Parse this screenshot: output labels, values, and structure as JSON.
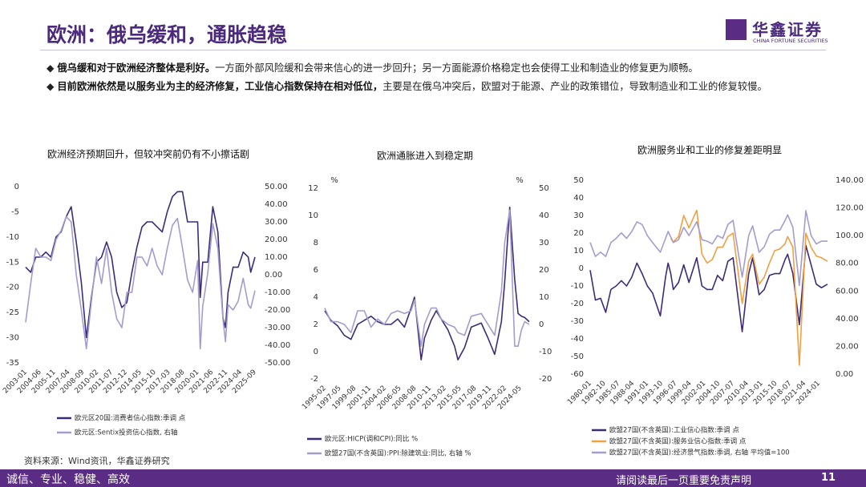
{
  "header": {
    "title": "欧洲：俄乌缓和，通胀趋稳",
    "logo": "华鑫证券",
    "logo_en": "CHINA FORTUNE SECURITIES"
  },
  "bullets": [
    {
      "bold": "俄乌缓和对于欧洲经济整体是利好。",
      "text": "一方面外部风险缓和会带来信心的进一步回升；另一方面能源价格稳定也会使得工业和制造业的修复更为顺畅。"
    },
    {
      "bold": "目前欧洲依然是以服务业为主的经济修复，工业信心指数保持在相对低位，",
      "text": "主要是在俄乌冲突后，欧盟对于能源、产业的政策错位，导致制造业和工业的修复较慢。"
    }
  ],
  "source": "资料来源：Wind资讯，华鑫证券研究",
  "footer": {
    "motto": "诚信、专业、稳健、高效",
    "disclaimer": "请阅读最后一页重要免责声明",
    "page": 11
  },
  "chart_data": [
    {
      "type": "line",
      "title": "欧洲经济预期回升，但较冲突前仍有不小擦话剧",
      "x": [
        "2003-01",
        "2003-07",
        "2004-01",
        "2004-07",
        "2005-01",
        "2005-07",
        "2006-01",
        "2006-07",
        "2007-01",
        "2007-07",
        "2008-01",
        "2008-07",
        "2009-01",
        "2009-07",
        "2010-01",
        "2010-07",
        "2011-01",
        "2011-07",
        "2012-01",
        "2012-07",
        "2013-01",
        "2013-07",
        "2014-01",
        "2014-07",
        "2015-01",
        "2015-07",
        "2016-01",
        "2016-07",
        "2017-01",
        "2017-07",
        "2018-01",
        "2018-07",
        "2019-01",
        "2019-07",
        "2020-01",
        "2020-04",
        "2020-07",
        "2021-01",
        "2021-07",
        "2022-01",
        "2022-07",
        "2022-10",
        "2023-01",
        "2023-07",
        "2024-01",
        "2024-07",
        "2025-01",
        "2025-04",
        "2025-09"
      ],
      "xticks": [
        "2003-01",
        "2004-06",
        "2005-11",
        "2007-04",
        "2008-09",
        "2010-02",
        "2011-07",
        "2012-12",
        "2014-05",
        "2015-10",
        "2017-03",
        "2018-08",
        "2020-01",
        "2021-06",
        "2022-11",
        "2024-04",
        "2025-09"
      ],
      "ylim": [
        -35,
        0
      ],
      "yticks": [
        0,
        -5,
        -10,
        -15,
        -20,
        -25,
        -30,
        -35
      ],
      "y2lim": [
        -50,
        50
      ],
      "y2ticks": [
        {
          "value": 50,
          "label": "50.00"
        },
        {
          "value": 40,
          "label": "40.00"
        },
        {
          "value": 30,
          "label": "30.00"
        },
        {
          "value": 20,
          "label": "20.00"
        },
        {
          "value": 10,
          "label": "10.00"
        },
        {
          "value": 0,
          "label": "0.00"
        },
        {
          "value": -10,
          "label": "-10.00"
        },
        {
          "value": -20,
          "label": "-20.00"
        },
        {
          "value": -30,
          "label": "-30.00"
        },
        {
          "value": -40,
          "label": "-40.00"
        },
        {
          "value": -50,
          "label": "-50.00"
        }
      ],
      "series": [
        {
          "name": "欧元区20国:消费者信心指数:季调 点",
          "color": "#3d2b7a",
          "values": [
            -16,
            -17,
            -14,
            -14,
            -13,
            -14,
            -10,
            -9,
            -6,
            -4,
            -11,
            -19,
            -30,
            -22,
            -15,
            -14,
            -11,
            -14,
            -21,
            -24,
            -23,
            -17,
            -12,
            -8,
            -7,
            -7,
            -8,
            -9,
            -5,
            -2,
            -1,
            -1,
            -7,
            -7,
            -7,
            -22,
            -15,
            -15,
            -4,
            -9,
            -26,
            -28,
            -21,
            -16,
            -16,
            -13,
            -14,
            -17,
            -14
          ]
        },
        {
          "name": "欧元区:Sentix投资信心指数, 右轴",
          "color": "#a49ccf",
          "axis": "y2",
          "values": [
            -27,
            -5,
            15,
            10,
            10,
            8,
            20,
            25,
            33,
            30,
            0,
            -20,
            -42,
            -15,
            10,
            -5,
            15,
            -10,
            -25,
            -30,
            -10,
            -10,
            10,
            10,
            5,
            15,
            5,
            0,
            15,
            28,
            32,
            15,
            -3,
            -10,
            8,
            -42,
            -18,
            1,
            29,
            15,
            -25,
            -38,
            -17,
            -20,
            -15,
            -2,
            -17,
            -19,
            -9
          ]
        }
      ]
    },
    {
      "type": "line",
      "title": "欧洲通胀进入到稳定期",
      "ylabel": "%",
      "y2label": "%",
      "x": [
        "1995-02",
        "1996-01",
        "1997-01",
        "1998-01",
        "1999-01",
        "2000-01",
        "2001-01",
        "2002-01",
        "2003-01",
        "2004-01",
        "2005-01",
        "2006-01",
        "2007-01",
        "2008-01",
        "2008-07",
        "2009-07",
        "2010-01",
        "2011-01",
        "2011-10",
        "2012-07",
        "2013-07",
        "2014-07",
        "2015-01",
        "2016-01",
        "2017-01",
        "2018-07",
        "2019-07",
        "2020-07",
        "2021-07",
        "2022-01",
        "2022-10",
        "2023-07",
        "2024-01",
        "2024-07",
        "2025-01",
        "2025-09"
      ],
      "xticks": [
        "1995-02",
        "1997-05",
        "1999-08",
        "2001-11",
        "2004-02",
        "2006-05",
        "2008-08",
        "2010-11",
        "2013-02",
        "2015-05",
        "2017-08",
        "2019-11",
        "2022-02",
        "2024-05"
      ],
      "ylim": [
        -2,
        12
      ],
      "yticks": [
        12,
        10,
        8,
        6,
        4,
        2,
        0,
        -2
      ],
      "y2lim": [
        -20,
        50
      ],
      "y2ticks": [
        50,
        40,
        30,
        20,
        10,
        0,
        -10,
        -20
      ],
      "series": [
        {
          "name": "欧元区:HICP(调和CPI):同比 %",
          "color": "#3d2b7a",
          "values": [
            3,
            2.3,
            1.9,
            1.2,
            0.9,
            2.0,
            2.3,
            2.6,
            2.2,
            2.0,
            2.0,
            2.4,
            1.8,
            3.2,
            4.0,
            -0.6,
            1.0,
            2.3,
            3.0,
            2.4,
            1.6,
            0.4,
            -0.6,
            0.3,
            1.8,
            2.1,
            1.0,
            -0.2,
            2.2,
            5.1,
            10.6,
            5.3,
            2.8,
            2.6,
            2.5,
            2.2
          ]
        },
        {
          "name": "欧盟27国(不含英国):PPI:除建筑业:同比, 右轴 %",
          "color": "#a49ccf",
          "axis": "y2",
          "values": [
            6,
            1,
            1,
            0,
            -3,
            5,
            5,
            -1,
            2,
            0,
            4,
            5,
            4,
            5,
            9,
            -8,
            0,
            6,
            6,
            2,
            0,
            -1,
            -3,
            -4,
            3,
            4,
            0,
            -4,
            12,
            30,
            42,
            -8,
            -8,
            -2,
            1,
            0
          ]
        }
      ]
    },
    {
      "type": "line",
      "title": "欧洲服务业和工业的修复差距明显",
      "x": [
        "1980-01",
        "1981-01",
        "1982-01",
        "1983-01",
        "1984-01",
        "1985-01",
        "1986-01",
        "1987-01",
        "1988-01",
        "1989-01",
        "1990-01",
        "1991-01",
        "1992-01",
        "1993-07",
        "1994-07",
        "1995-01",
        "1995-07",
        "1996-01",
        "1997-01",
        "1998-01",
        "1999-01",
        "2000-07",
        "2001-07",
        "2002-07",
        "2003-07",
        "2004-07",
        "2005-07",
        "2006-07",
        "2007-07",
        "2009-04",
        "2010-07",
        "2011-04",
        "2012-07",
        "2013-07",
        "2014-07",
        "2015-07",
        "2016-07",
        "2017-07",
        "2018-01",
        "2019-01",
        "2020-04",
        "2021-07",
        "2022-07",
        "2023-07",
        "2024-07",
        "2025-09"
      ],
      "xticks": [
        "1980-01",
        "1982-10",
        "1985-07",
        "1988-04",
        "1991-01",
        "1993-10",
        "1996-07",
        "1999-04",
        "2002-01",
        "2004-10",
        "2007-07",
        "2010-04",
        "2013-01",
        "2015-10",
        "2018-07",
        "2021-04",
        "2024-01"
      ],
      "ylim": [
        -60,
        50
      ],
      "yticks": [
        50,
        40,
        30,
        20,
        10,
        0,
        -10,
        -20,
        -30,
        -40,
        -50,
        -60
      ],
      "y2lim": [
        0,
        140
      ],
      "y2ticks": [
        {
          "value": 140,
          "label": "140.00"
        },
        {
          "value": 120,
          "label": "120.00"
        },
        {
          "value": 100,
          "label": "100.00"
        },
        {
          "value": 80,
          "label": "80.00"
        },
        {
          "value": 60,
          "label": "60.00"
        },
        {
          "value": 40,
          "label": "40.00"
        },
        {
          "value": 20,
          "label": "20.00"
        },
        {
          "value": 0,
          "label": "0.00"
        }
      ],
      "series": [
        {
          "name": "欧盟27国(不含英国):工业信心指数:季调 点",
          "color": "#3d2b7a",
          "values": [
            -1,
            -18,
            -17,
            -25,
            -12,
            -10,
            -7,
            -10,
            -5,
            3,
            -3,
            -10,
            -14,
            -27,
            -5,
            3,
            -3,
            -12,
            -8,
            2,
            -8,
            6,
            -10,
            -12,
            -12,
            -4,
            -7,
            4,
            6,
            -36,
            -3,
            6,
            -15,
            -12,
            -4,
            -3,
            -3,
            5,
            8,
            -3,
            -32,
            13,
            2,
            -9,
            -11,
            -9
          ]
        },
        {
          "name": "欧盟27国(不含英国):服务业信心指数:季调 点",
          "color": "#f0a040",
          "values": [
            null,
            null,
            null,
            null,
            null,
            null,
            null,
            null,
            null,
            null,
            null,
            null,
            null,
            null,
            null,
            null,
            17,
            15,
            18,
            30,
            23,
            33,
            8,
            3,
            5,
            12,
            12,
            18,
            20,
            -20,
            4,
            8,
            -9,
            -5,
            3,
            10,
            11,
            14,
            18,
            12,
            -55,
            20,
            12,
            7,
            6,
            4
          ]
        },
        {
          "name": "欧盟27国(不含英国):经济景气指数:季调, 右轴 平均值=100",
          "color": "#a49ccf",
          "axis": "y2",
          "values": [
            95,
            85,
            88,
            85,
            95,
            98,
            102,
            98,
            103,
            110,
            108,
            100,
            95,
            88,
            98,
            103,
            99,
            95,
            97,
            106,
            100,
            110,
            97,
            96,
            94,
            100,
            98,
            108,
            111,
            70,
            100,
            107,
            88,
            92,
            101,
            104,
            104,
            111,
            115,
            106,
            64,
            118,
            100,
            94,
            96,
            96
          ]
        }
      ]
    }
  ]
}
